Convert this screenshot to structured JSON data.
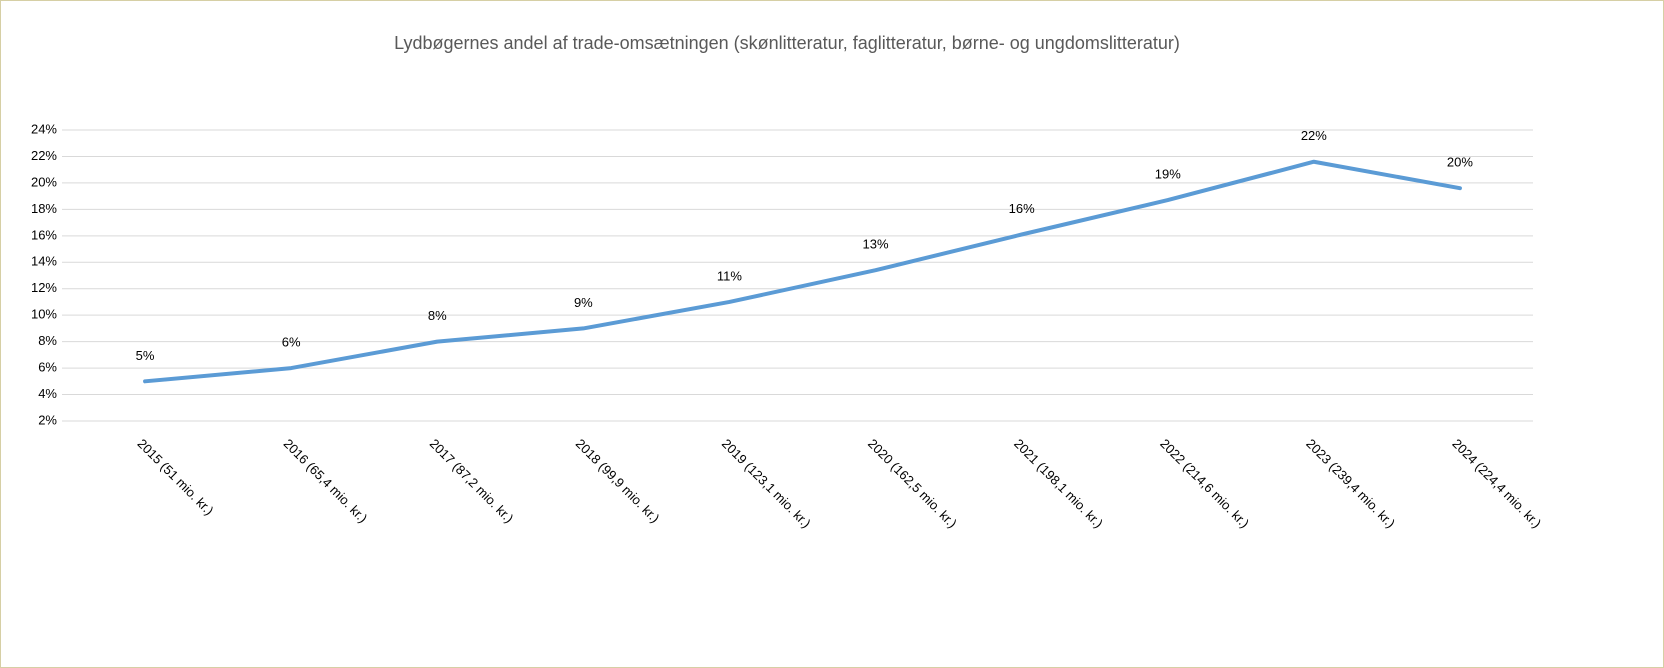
{
  "chart_data": {
    "type": "line",
    "title": "Lydbøgernes andel af trade-omsætningen (skønlitteratur, faglitteratur, børne- og ungdomslitteratur)",
    "categories": [
      "2015  (51 mio. kr.)",
      "2016  (65,4 mio. kr.)",
      "2017  (87,2 mio. kr.)",
      "2018  (99,9 mio. kr.)",
      "2019  (123,1 mio. kr.)",
      "2020  (162,5 mio. kr.)",
      "2021  (198,1 mio. kr.)",
      "2022  (214,6 mio. kr.)",
      "2023  (239,4 mio. kr.)",
      "2024  (224,4 mio. kr.)"
    ],
    "series": [
      {
        "name": "Lydbøgernes andel",
        "color": "#5b9bd5",
        "values": [
          5,
          6,
          8,
          9,
          11,
          13.4,
          16.1,
          18.7,
          21.6,
          19.6
        ],
        "value_labels": [
          "5%",
          "6%",
          "8%",
          "9%",
          "11%",
          "13%",
          "16%",
          "19%",
          "22%",
          "20%"
        ]
      }
    ],
    "ylim": [
      2,
      24
    ],
    "yticks": [
      {
        "value": 2,
        "label": "2%"
      },
      {
        "value": 4,
        "label": "4%"
      },
      {
        "value": 6,
        "label": "6%"
      },
      {
        "value": 8,
        "label": "8%"
      },
      {
        "value": 10,
        "label": "10%"
      },
      {
        "value": 12,
        "label": "12%"
      },
      {
        "value": 14,
        "label": "14%"
      },
      {
        "value": 16,
        "label": "16%"
      },
      {
        "value": 18,
        "label": "18%"
      },
      {
        "value": 20,
        "label": "20%"
      },
      {
        "value": 22,
        "label": "22%"
      },
      {
        "value": 24,
        "label": "24%"
      }
    ],
    "grid": true
  }
}
